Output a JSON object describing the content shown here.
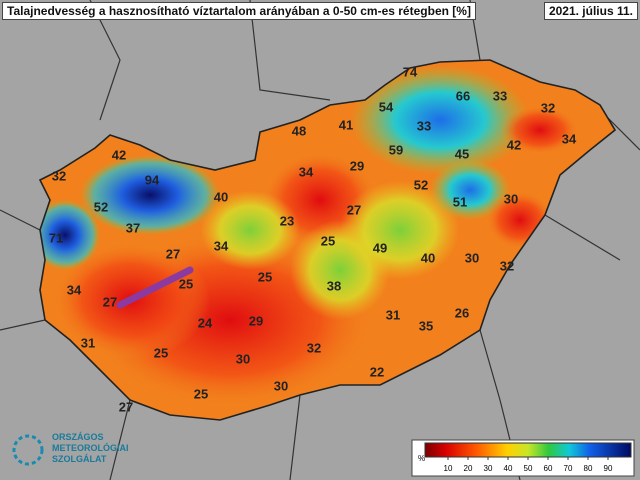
{
  "header": {
    "title": "Talajnedvesség a hasznosítható víztartalom arányában a 0-50 cm-es rétegben [%]",
    "date": "2021. július 11."
  },
  "map": {
    "labels": [
      74,
      66,
      33,
      32,
      54,
      41,
      48,
      33,
      42,
      34,
      45,
      59,
      29,
      42,
      94,
      32,
      34,
      52,
      40,
      51,
      30,
      52,
      27,
      23,
      37,
      71,
      25,
      34,
      49,
      27,
      40,
      30,
      32,
      25,
      38,
      25,
      34,
      27,
      31,
      26,
      24,
      29,
      35,
      31,
      25,
      32,
      30,
      22,
      30,
      25,
      27
    ]
  },
  "legend": {
    "unit": "%",
    "ticks": [
      10,
      20,
      30,
      40,
      50,
      60,
      70,
      80,
      90
    ]
  },
  "logo": {
    "line1": "ORSZÁGOS",
    "line2": "METEOROLÓGIAI",
    "line3": "SZOLGÁLAT"
  }
}
